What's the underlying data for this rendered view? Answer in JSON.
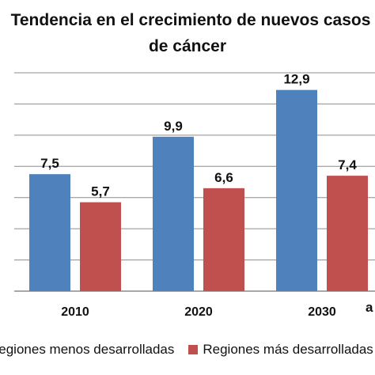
{
  "chart_data": {
    "type": "bar",
    "title_line1": "Tendencia en el crecimiento de nuevos casos",
    "title_line2": "de cáncer",
    "categories": [
      "2010",
      "2020",
      "2030"
    ],
    "series": [
      {
        "name": "Regiones menos desarrolladas",
        "color": "#4F81BD",
        "values": [
          7.5,
          9.9,
          12.9
        ],
        "labels": [
          "7,5",
          "9,9",
          "12,9"
        ]
      },
      {
        "name": "Regiones más desarrolladas",
        "color": "#C0504D",
        "values": [
          5.7,
          6.6,
          7.4
        ],
        "labels": [
          "5,7",
          "6,6",
          "7,4"
        ]
      }
    ],
    "ylim": [
      0,
      14
    ],
    "grid": true,
    "x_unit": "a",
    "legend_position": "bottom"
  }
}
